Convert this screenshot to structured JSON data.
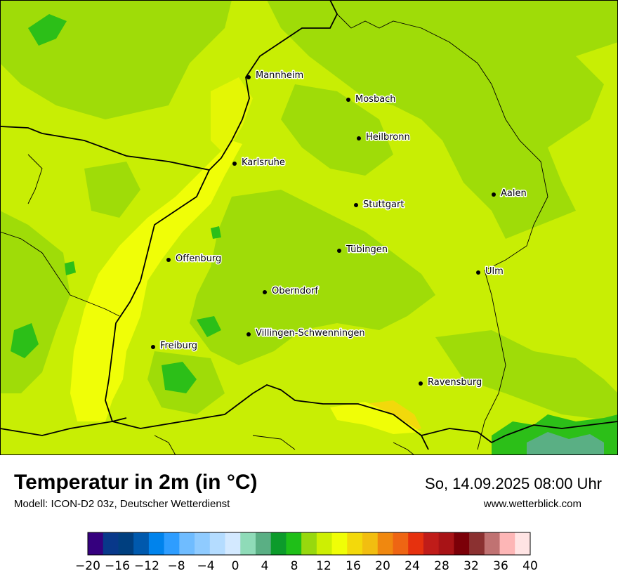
{
  "title": "Temperatur in 2m (in °C)",
  "subtitle": "Modell: ICON-D2 03z, Deutscher Wetterdienst",
  "datetime": "So, 14.09.2025 08:00 Uhr",
  "website": "www.wetterblick.com",
  "cities": [
    {
      "name": "Mannheim"
    },
    {
      "name": "Mosbach"
    },
    {
      "name": "Heilbronn"
    },
    {
      "name": "Karlsruhe"
    },
    {
      "name": "Aalen"
    },
    {
      "name": "Stuttgart"
    },
    {
      "name": "Tübingen"
    },
    {
      "name": "Offenburg"
    },
    {
      "name": "Ulm"
    },
    {
      "name": "Oberndorf"
    },
    {
      "name": "Villingen-Schwenningen"
    },
    {
      "name": "Freiburg"
    },
    {
      "name": "Ravensburg"
    }
  ],
  "legend": {
    "unit": "°C",
    "ticks": [
      "−20",
      "−16",
      "−12",
      "−8",
      "−4",
      "0",
      "4",
      "8",
      "12",
      "16",
      "20",
      "24",
      "28",
      "32",
      "36",
      "40"
    ],
    "colors": [
      "#35007e",
      "#08388a",
      "#003f7f",
      "#0059ad",
      "#0083ec",
      "#2e9dff",
      "#6fbcff",
      "#8fcbff",
      "#b4dcff",
      "#d3e9ff",
      "#8fdbb8",
      "#5aaf84",
      "#0c9b2b",
      "#1fbf18",
      "#97d80e",
      "#cdef03",
      "#f0fe07",
      "#f3d90b",
      "#f2be10",
      "#f0880f",
      "#ee6513",
      "#e6310e",
      "#c01c19",
      "#a81316",
      "#7b0008",
      "#8b3131",
      "#c07272",
      "#fdb6b6",
      "#ffe4e4"
    ]
  }
}
